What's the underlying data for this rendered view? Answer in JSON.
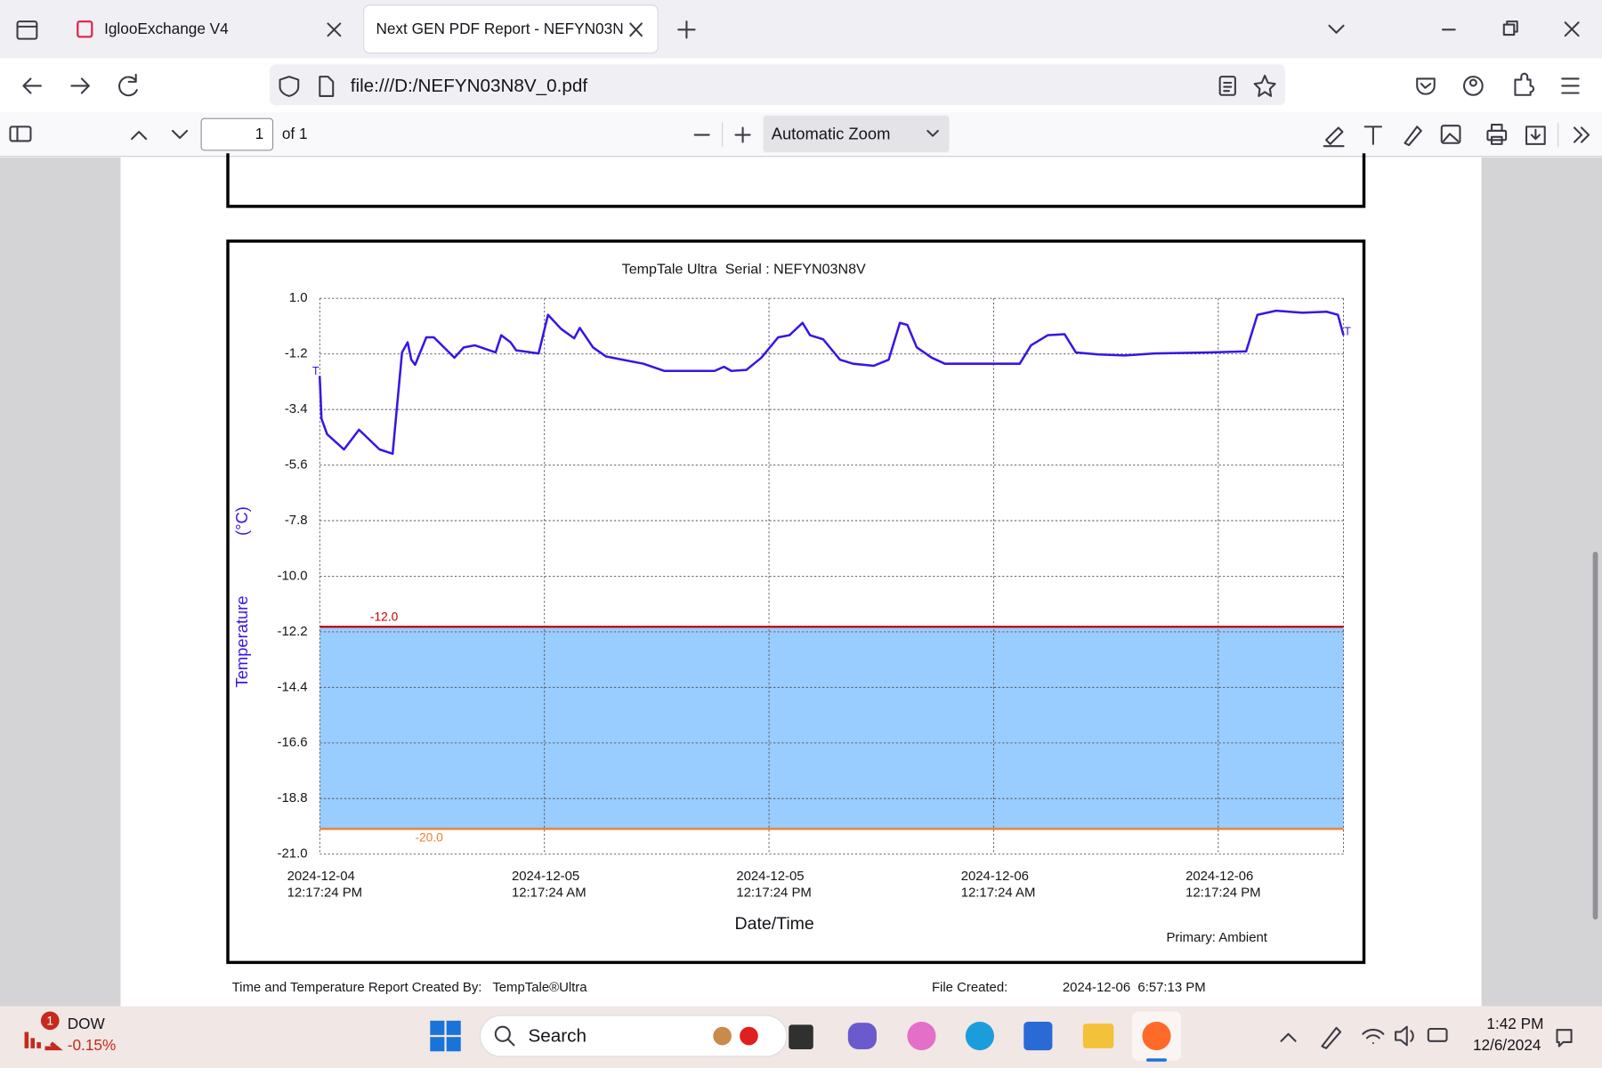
{
  "browser": {
    "tabs": [
      "IglooExchange V4",
      "Next GEN PDF Report - NEFYN03N"
    ],
    "url": "file:///D:/NEFYN03N8V_0.pdf"
  },
  "pdf_toolbar": {
    "page": "1",
    "page_count": "of 1",
    "zoom": "Automatic Zoom"
  },
  "chart_data": {
    "type": "line",
    "title": "TempTale Ultra  Serial : NEFYN03N8V",
    "y_label": "Temperature",
    "y_unit": "(°C)",
    "x_label": "Date/Time",
    "primary": "Primary: Ambient",
    "marker": "T",
    "line_color": "#3a14e6",
    "grid": true,
    "ylim": [
      -21,
      1
    ],
    "yticks": [
      {
        "value": 1,
        "label": "1.0"
      },
      -1.2,
      -3.4,
      -5.6,
      -7.8,
      {
        "value": -10,
        "label": "-10.0"
      },
      -12.2,
      -14.4,
      -16.6,
      -18.8,
      {
        "value": -21,
        "label": "-21.0"
      }
    ],
    "xlim": [
      "2024-12-04T12:17:24",
      "2024-12-06T18:59:00"
    ],
    "xticks": [
      {
        "value": "2024-12-04T12:17:24",
        "label": [
          "2024-12-04",
          "12:17:24 PM"
        ]
      },
      {
        "value": "2024-12-05T00:17:24",
        "label": [
          "2024-12-05",
          "12:17:24 AM"
        ]
      },
      {
        "value": "2024-12-05T12:17:24",
        "label": [
          "2024-12-05",
          "12:17:24 PM"
        ]
      },
      {
        "value": "2024-12-06T00:17:24",
        "label": [
          "2024-12-06",
          "12:17:24 AM"
        ]
      },
      {
        "value": "2024-12-06T12:17:24",
        "label": [
          "2024-12-06",
          "12:17:24 PM"
        ]
      }
    ],
    "thresholds": [
      {
        "value": -12,
        "label": "-12.0",
        "color": "#c00000"
      },
      {
        "value": -20,
        "label": "-20.0",
        "color": "#f07f30"
      }
    ],
    "band_color": "#99ccff",
    "x": [
      "2024-12-04T12:17",
      "2024-12-04T12:23",
      "2024-12-04T12:41",
      "2024-12-04T13:35",
      "2024-12-04T14:23",
      "2024-12-04T15:29",
      "2024-12-04T16:11",
      "2024-12-04T16:41",
      "2024-12-04T16:59",
      "2024-12-04T17:11",
      "2024-12-04T17:23",
      "2024-12-04T17:59",
      "2024-12-04T18:23",
      "2024-12-04T19:05",
      "2024-12-04T19:29",
      "2024-12-04T19:59",
      "2024-12-04T20:35",
      "2024-12-04T21:41",
      "2024-12-04T21:59",
      "2024-12-04T22:29",
      "2024-12-04T22:47",
      "2024-12-04T23:59",
      "2024-12-05T00:29",
      "2024-12-05T01:11",
      "2024-12-05T01:53",
      "2024-12-05T02:11",
      "2024-12-05T02:53",
      "2024-12-05T03:35",
      "2024-12-05T04:29",
      "2024-12-05T05:35",
      "2024-12-05T06:41",
      "2024-12-05T09:23",
      "2024-12-05T09:53",
      "2024-12-05T10:17",
      "2024-12-05T11:05",
      "2024-12-05T11:53",
      "2024-12-05T12:47",
      "2024-12-05T13:23",
      "2024-12-05T14:05",
      "2024-12-05T14:29",
      "2024-12-05T15:11",
      "2024-12-05T16:05",
      "2024-12-05T16:47",
      "2024-12-05T17:53",
      "2024-12-05T18:41",
      "2024-12-05T19:17",
      "2024-12-05T19:41",
      "2024-12-05T20:11",
      "2024-12-05T20:59",
      "2024-12-05T21:41",
      "2024-12-06T01:41",
      "2024-12-06T02:17",
      "2024-12-06T03:11",
      "2024-12-06T04:05",
      "2024-12-06T04:41",
      "2024-12-06T05:53",
      "2024-12-06T07:17",
      "2024-12-06T08:53",
      "2024-12-06T11:47",
      "2024-12-06T13:47",
      "2024-12-06T14:23",
      "2024-12-06T15:23",
      "2024-12-06T16:47",
      "2024-12-06T18:05",
      "2024-12-06T18:41",
      "2024-12-06T18:59"
    ],
    "values": [
      -2.07,
      -3.77,
      -4.38,
      -4.98,
      -4.2,
      -4.98,
      -5.15,
      -1.14,
      -0.74,
      -1.43,
      -1.63,
      -0.54,
      -0.54,
      -1.06,
      -1.35,
      -0.94,
      -0.86,
      -1.14,
      -0.46,
      -0.74,
      -1.06,
      -1.18,
      0.35,
      -0.21,
      -0.58,
      -0.17,
      -0.94,
      -1.3,
      -1.43,
      -1.59,
      -1.87,
      -1.87,
      -1.71,
      -1.87,
      -1.83,
      -1.35,
      -0.54,
      -0.46,
      0.03,
      -0.46,
      -0.62,
      -1.43,
      -1.59,
      -1.67,
      -1.43,
      0.03,
      -0.05,
      -0.94,
      -1.35,
      -1.59,
      -1.59,
      -0.86,
      -0.46,
      -0.42,
      -1.14,
      -1.22,
      -1.26,
      -1.18,
      -1.14,
      -1.1,
      0.35,
      0.51,
      0.43,
      0.47,
      0.35,
      -0.46
    ]
  },
  "report_footer": {
    "created_by_label": "Time and Temperature Report Created By:",
    "created_by": "TempTale®Ultra",
    "file_created_label": "File Created:",
    "file_created": "2024-12-06  6:57:13 PM"
  },
  "taskbar": {
    "ticker": "DOW",
    "change": "-0.15%",
    "badge": "1",
    "search": "Search",
    "time": "1:42 PM",
    "date": "12/6/2024"
  }
}
